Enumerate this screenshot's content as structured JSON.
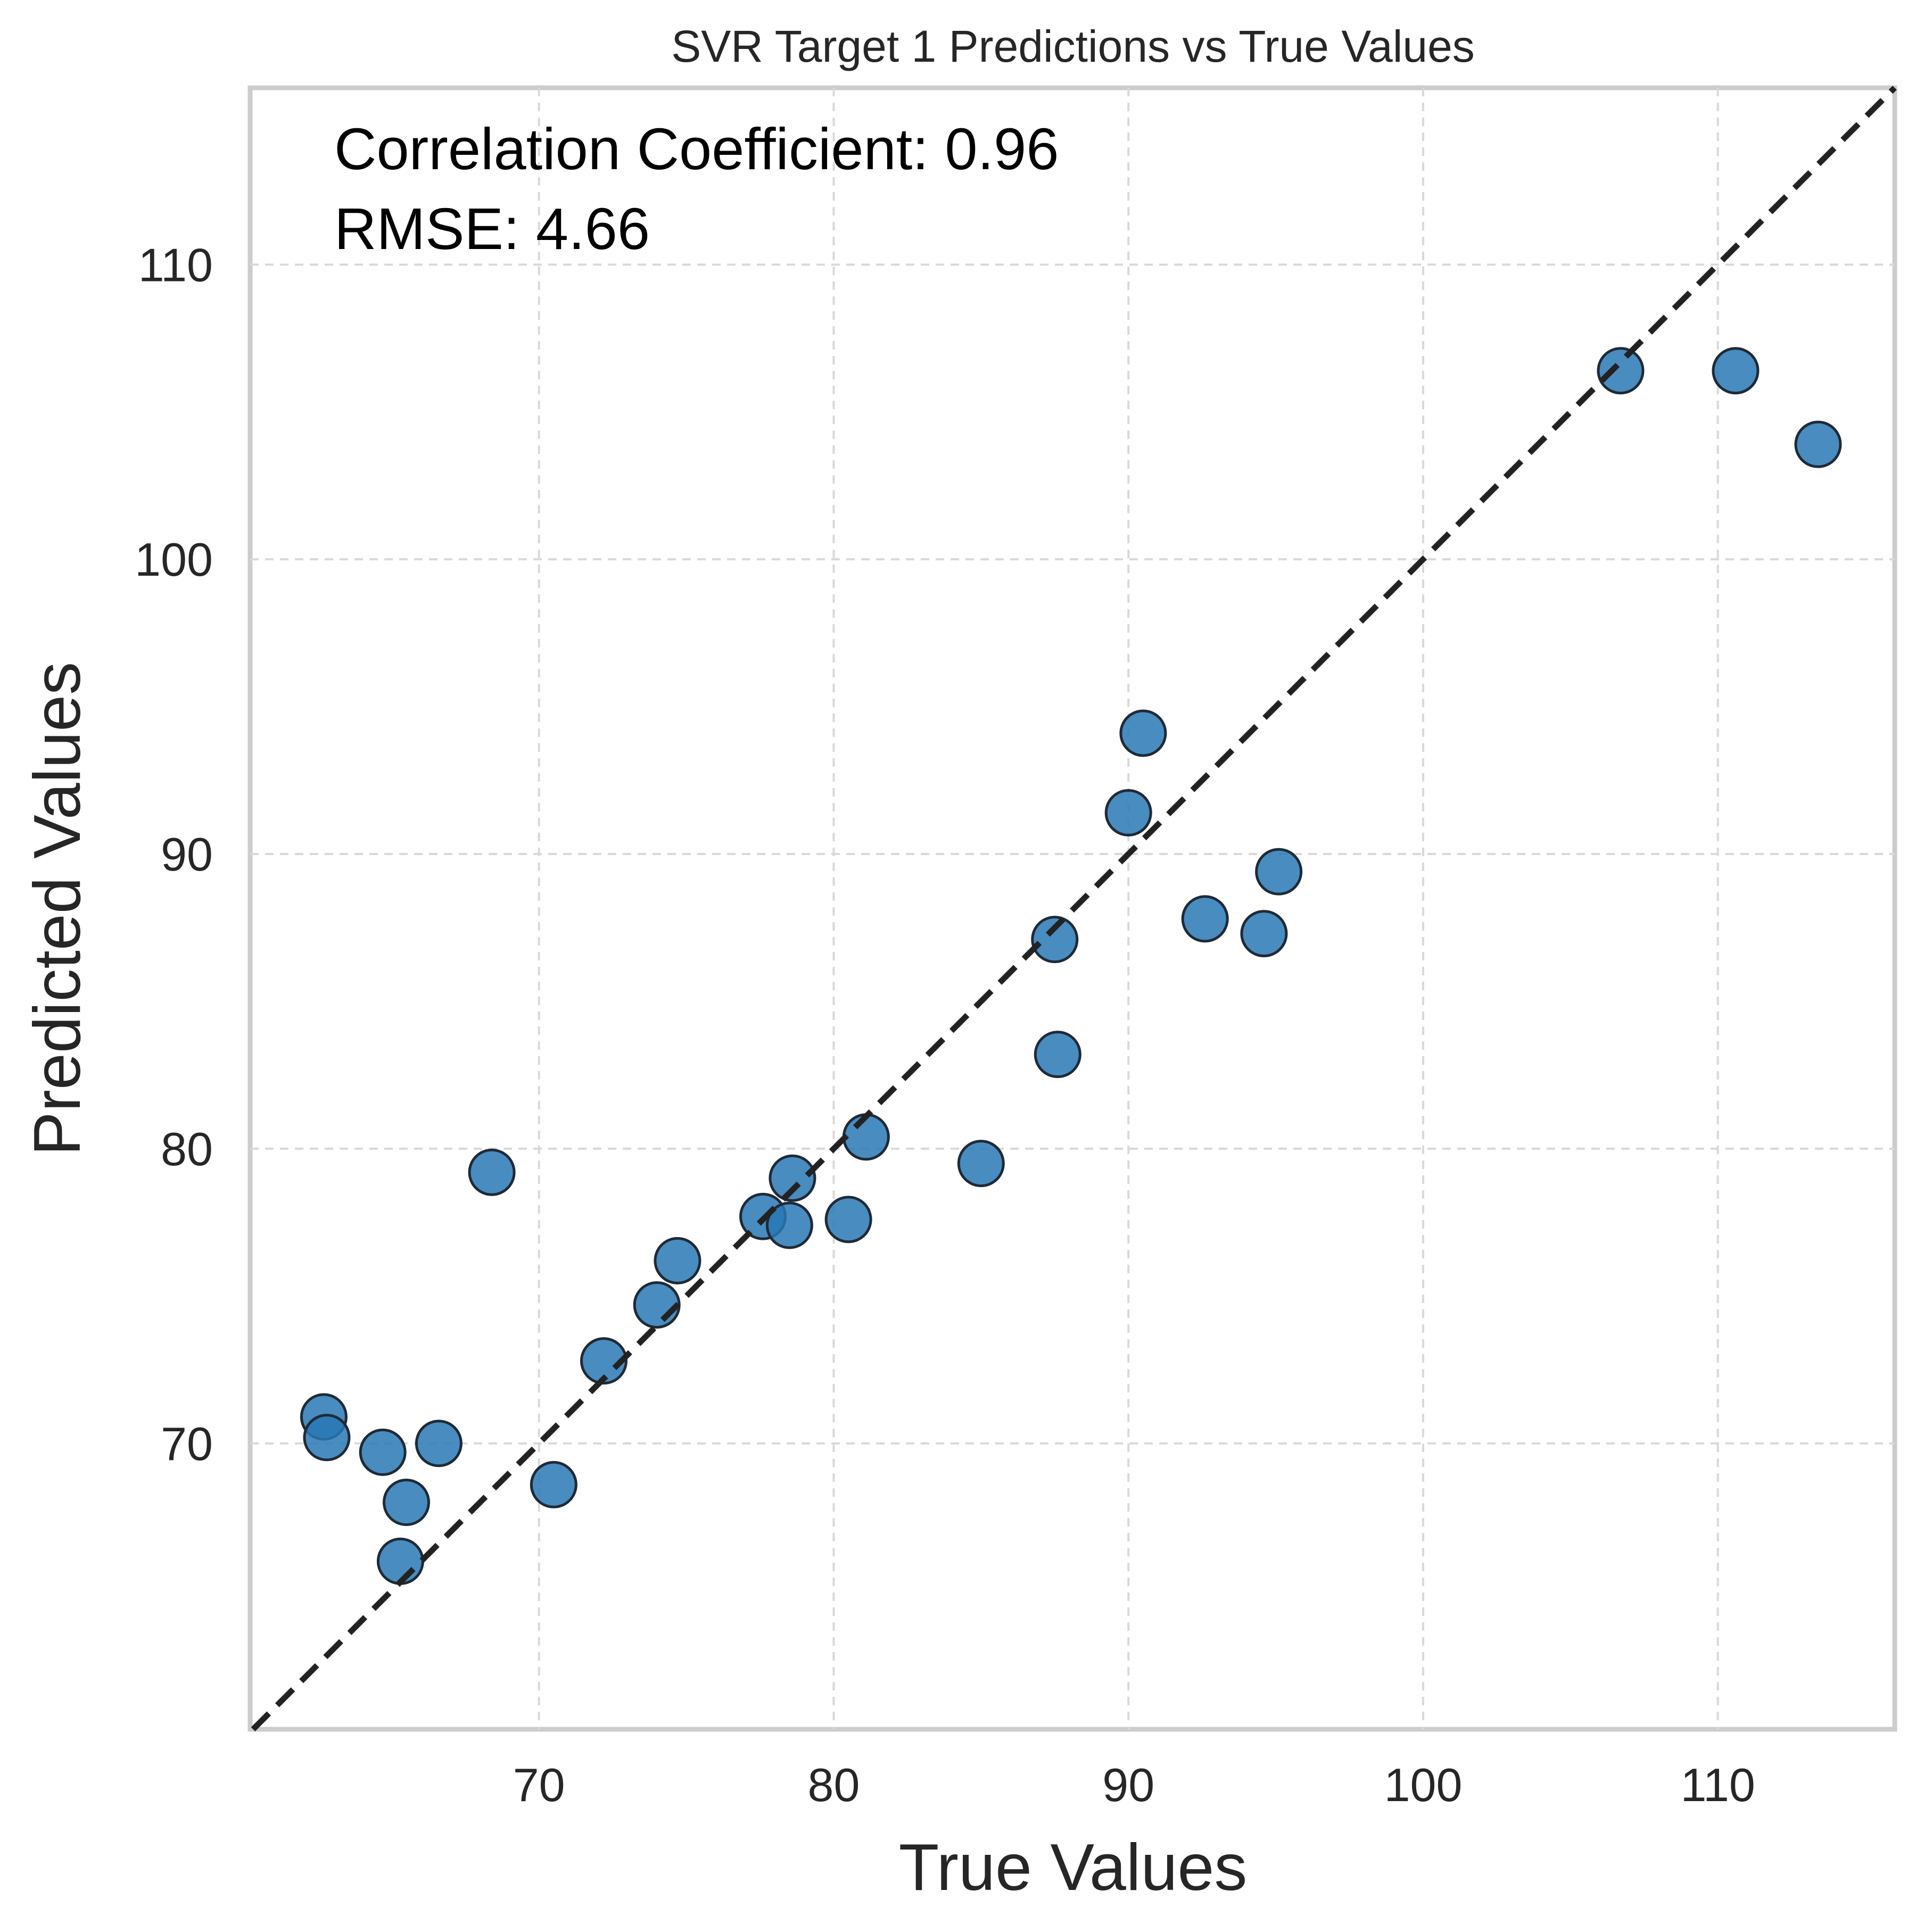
{
  "chart_data": {
    "type": "scatter",
    "title": "SVR Target 1 Predictions vs True Values",
    "xlabel": "True Values",
    "ylabel": "Predicted Values",
    "xlim": [
      60.2,
      116
    ],
    "ylim": [
      60.3,
      116
    ],
    "xticks": [
      70,
      80,
      90,
      100,
      110
    ],
    "yticks": [
      70,
      80,
      90,
      100,
      110
    ],
    "grid": true,
    "reference_line": "y = x",
    "annotations": [
      "Correlation Coefficient: 0.96",
      "RMSE: 4.66"
    ],
    "point_color": "#2878b5",
    "line_color": "#222222",
    "points": [
      {
        "x": 62.7,
        "y": 70.9
      },
      {
        "x": 62.8,
        "y": 70.2
      },
      {
        "x": 64.7,
        "y": 69.7
      },
      {
        "x": 66.6,
        "y": 70.0
      },
      {
        "x": 65.5,
        "y": 68.0
      },
      {
        "x": 65.3,
        "y": 66.0
      },
      {
        "x": 68.4,
        "y": 79.2
      },
      {
        "x": 70.5,
        "y": 68.6
      },
      {
        "x": 72.2,
        "y": 72.8
      },
      {
        "x": 74.0,
        "y": 74.7
      },
      {
        "x": 74.7,
        "y": 76.2
      },
      {
        "x": 77.6,
        "y": 77.7
      },
      {
        "x": 78.5,
        "y": 77.4
      },
      {
        "x": 78.6,
        "y": 79.0
      },
      {
        "x": 80.5,
        "y": 77.6
      },
      {
        "x": 81.1,
        "y": 80.4
      },
      {
        "x": 85.0,
        "y": 79.5
      },
      {
        "x": 87.5,
        "y": 87.1
      },
      {
        "x": 87.6,
        "y": 83.2
      },
      {
        "x": 90.0,
        "y": 91.4
      },
      {
        "x": 90.5,
        "y": 94.1
      },
      {
        "x": 92.6,
        "y": 87.8
      },
      {
        "x": 94.6,
        "y": 87.3
      },
      {
        "x": 95.1,
        "y": 89.4
      },
      {
        "x": 106.7,
        "y": 106.4
      },
      {
        "x": 110.6,
        "y": 106.4
      },
      {
        "x": 113.4,
        "y": 103.9
      }
    ]
  }
}
